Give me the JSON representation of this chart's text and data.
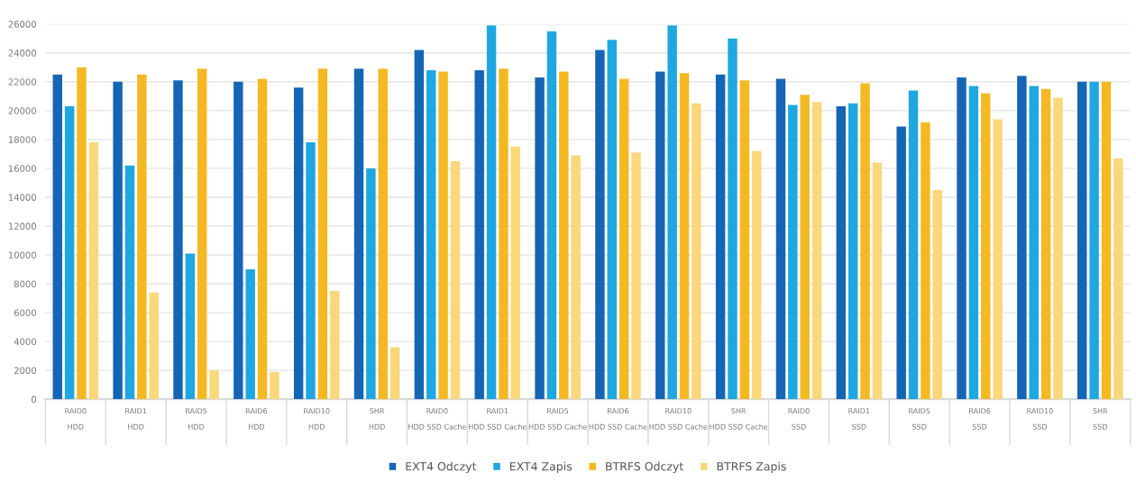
{
  "chart_data": {
    "type": "bar",
    "categories": [
      "RAID0\nHDD",
      "RAID1\nHDD",
      "RAID5\nHDD",
      "RAID6\nHDD",
      "RAID10\nHDD",
      "SHR\nHDD",
      "RAID0\nHDD SSD Cache",
      "RAID1\nHDD SSD Cache",
      "RAID5\nHDD SSD Cache",
      "RAID6\nHDD SSD Cache",
      "RAID10\nHDD SSD Cache",
      "SHR\nHDD SSD Cache",
      "RAID0\nSSD",
      "RAID1\nSSD",
      "RAID5\nSSD",
      "RAID6\nSSD",
      "RAID10\nSSD",
      "SHR\nSSD"
    ],
    "series": [
      {
        "name": "EXT4 Odczyt",
        "color": "#1565b5",
        "values": [
          22500,
          22000,
          22100,
          22000,
          21600,
          22900,
          24200,
          22800,
          22300,
          24200,
          22700,
          22500,
          22200,
          20300,
          18900,
          22300,
          22400,
          22000
        ]
      },
      {
        "name": "EXT4 Zapis",
        "color": "#1ea7e1",
        "values": [
          20300,
          16200,
          10100,
          9000,
          17800,
          16000,
          22800,
          25900,
          25500,
          24900,
          25900,
          25000,
          20400,
          20500,
          21400,
          21700,
          21700,
          22000
        ]
      },
      {
        "name": "BTRFS Odczyt",
        "color": "#f4b922",
        "values": [
          23000,
          22500,
          22900,
          22200,
          22900,
          22900,
          22700,
          22900,
          22700,
          22200,
          22600,
          22100,
          21100,
          21900,
          19200,
          21200,
          21500,
          22000
        ]
      },
      {
        "name": "BTRFS Zapis",
        "color": "#f9d77a",
        "values": [
          17800,
          7400,
          2000,
          1900,
          7500,
          3600,
          16500,
          17500,
          16900,
          17100,
          20500,
          17200,
          20600,
          16400,
          14500,
          19400,
          20900,
          16700
        ]
      }
    ],
    "ylim": [
      0,
      26000
    ],
    "yticks": [
      0,
      2000,
      4000,
      6000,
      8000,
      10000,
      12000,
      14000,
      16000,
      18000,
      20000,
      22000,
      24000,
      26000
    ],
    "grid": "y",
    "legend": "bottom"
  }
}
